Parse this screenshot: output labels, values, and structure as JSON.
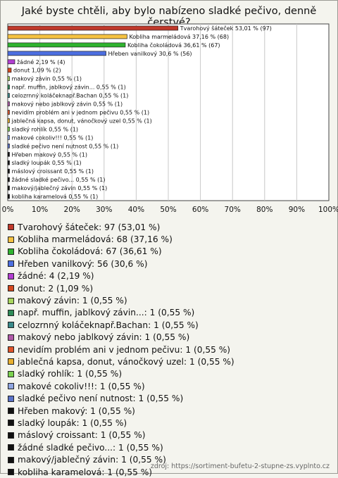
{
  "title": "Jaké byste chtěli, aby bylo nabízeno sladké pečivo, denně čerstvé?",
  "source": "zdroj: https://sortiment-bufetu-2-stupne-zs.vyplnto.cz",
  "chart_data": {
    "type": "bar",
    "orientation": "horizontal",
    "title": "Jaké byste chtěli, aby bylo nabízeno sladké pečivo, denně čerstvé?",
    "xlabel": "",
    "ylabel": "",
    "xlim": [
      0,
      100
    ],
    "x_ticks": [
      "0%",
      "10%",
      "20%",
      "30%",
      "40%",
      "50%",
      "60%",
      "70%",
      "80%",
      "90%",
      "100%"
    ],
    "grid": true,
    "legend": "bottom",
    "series": [
      {
        "categories": [
          "Tvarohový šáteček",
          "Kobliha marmeládová",
          "Kobliha čokoládová",
          "Hřeben vanilkový",
          "žádné",
          "donut",
          "makový závin",
          "např. muffin, jablkový závin...",
          "celozrnný koláčeknapř.Bachan",
          "makový nebo jablkový závin",
          "nevidím problém ani v jednom pečivu",
          "jablečná kapsa, donut, vánočkový uzel",
          "sladký rohlík",
          "makové cokoliv!!!",
          "sladké pečivo není nutnost",
          "Hřeben makový",
          "sladký loupák",
          "máslový croissant",
          "žádné sladké pečivo...",
          "makový/jablečný závin",
          "kobliha karamelová"
        ],
        "values": [
          53.01,
          37.16,
          36.61,
          30.6,
          2.19,
          1.09,
          0.55,
          0.55,
          0.55,
          0.55,
          0.55,
          0.55,
          0.55,
          0.55,
          0.55,
          0.55,
          0.55,
          0.55,
          0.55,
          0.55,
          0.55
        ],
        "counts": [
          97,
          68,
          67,
          56,
          4,
          2,
          1,
          1,
          1,
          1,
          1,
          1,
          1,
          1,
          1,
          1,
          1,
          1,
          1,
          1,
          1
        ],
        "bar_labels": [
          "Tvarohový šáteček 53,01 % (97)",
          "Kobliha marmeládová 37,16 % (68)",
          "Kobliha čokoládová 36,61 % (67)",
          "Hřeben vanilkový 30,6 % (56)",
          "žádné 2,19 % (4)",
          "donut 1,09 % (2)",
          "makový závin 0,55 % (1)",
          "např. muffin, jablkový závin... 0,55 % (1)",
          "celozrnný koláčeknapř.Bachan 0,55 % (1)",
          "makový nebo jablkový závin 0,55 % (1)",
          "nevidím problém ani v jednom pečivu 0,55 % (1)",
          "jablečná kapsa, donut, vánočkový uzel 0,55 % (1)",
          "sladký rohlík 0,55 % (1)",
          "makové cokoliv!!! 0,55 % (1)",
          "sladké pečivo není nutnost 0,55 % (1)",
          "Hřeben makový 0,55 % (1)",
          "sladký loupák 0,55 % (1)",
          "máslový croissant 0,55 % (1)",
          "žádné sladké pečivo... 0,55 % (1)",
          "makový/jablečný závin 0,55 % (1)",
          "kobliha karamelová 0,55 % (1)"
        ],
        "legend_labels": [
          "Tvarohový šáteček: 97 (53,01 %)",
          "Kobliha marmeládová: 68 (37,16 %)",
          "Kobliha čokoládová: 67 (36,61 %)",
          "Hřeben vanilkový: 56 (30,6 %)",
          "žádné: 4 (2,19 %)",
          "donut: 2 (1,09 %)",
          "makový závin: 1 (0,55 %)",
          "např. muffin, jablkový závin...: 1 (0,55 %)",
          "celozrnný koláčeknapř.Bachan: 1 (0,55 %)",
          "makový nebo jablkový závin: 1 (0,55 %)",
          "nevidím problém ani v jednom pečivu: 1 (0,55 %)",
          "jablečná kapsa, donut, vánočkový uzel: 1 (0,55 %)",
          "sladký rohlík: 1 (0,55 %)",
          "makové cokoliv!!!: 1 (0,55 %)",
          "sladké pečivo není nutnost: 1 (0,55 %)",
          "Hřeben makový: 1 (0,55 %)",
          "sladký loupák: 1 (0,55 %)",
          "máslový croissant: 1 (0,55 %)",
          "žádné sladké pečivo...: 1 (0,55 %)",
          "makový/jablečný závin: 1 (0,55 %)",
          "kobliha karamelová: 1 (0,55 %)"
        ],
        "colors": [
          "#c0392b",
          "#f5c242",
          "#2fb32f",
          "#4d6fe0",
          "#b23fd1",
          "#d4481e",
          "#a8d65e",
          "#2e8b57",
          "#3a8a8a",
          "#b05aa8",
          "#e0552a",
          "#e8b030",
          "#7bd14f",
          "#8fa5e0",
          "#5a72c8",
          "#111111",
          "#111111",
          "#111111",
          "#111111",
          "#111111",
          "#111111"
        ]
      }
    ]
  }
}
